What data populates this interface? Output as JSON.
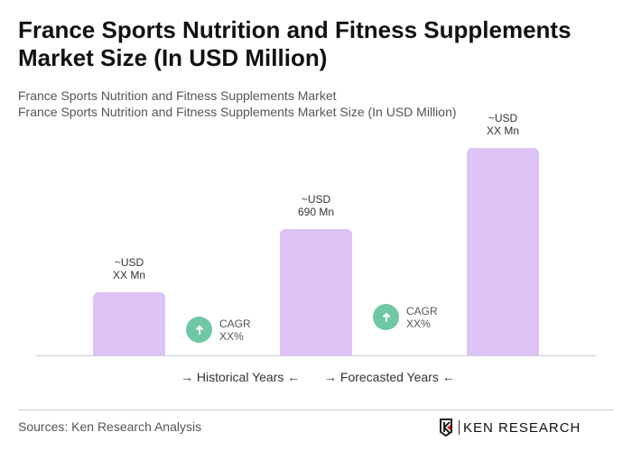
{
  "title": "France Sports Nutrition and Fitness Supplements Market Size (In USD Million)",
  "subtitle1": "France Sports Nutrition and Fitness Supplements Market",
  "subtitle2": "France Sports Nutrition and Fitness Supplements Market Size (In USD Million)",
  "chart_data": {
    "type": "bar",
    "categories": [
      "",
      "",
      ""
    ],
    "labels": [
      [
        "~USD",
        "XX Mn"
      ],
      [
        "~USD",
        "690 Mn"
      ],
      [
        "~USD",
        "XX Mn"
      ]
    ],
    "values": [
      null,
      690,
      null
    ],
    "bar_color": "#dec3f7",
    "cagr": [
      {
        "label": "CAGR",
        "value": "XX%",
        "icon": "arrow-up-icon"
      },
      {
        "label": "CAGR",
        "value": "XX%",
        "icon": "arrow-up-icon"
      }
    ],
    "cagr_color": "#6fc7a3",
    "legend": [
      "Historical Years",
      "Forecasted Years"
    ],
    "grid": false
  },
  "footer": {
    "source": "Sources: Ken Research Analysis",
    "logo": "KEN RESEARCH"
  }
}
